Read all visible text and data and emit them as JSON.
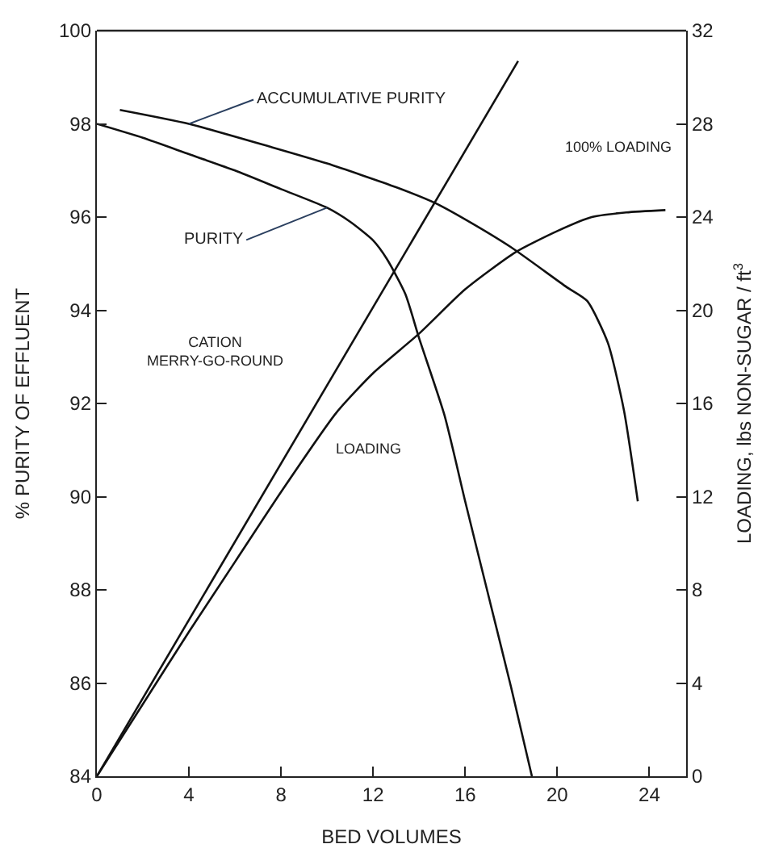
{
  "chart_data": {
    "type": "line",
    "xlabel": "BED VOLUMES",
    "ylabel": "% PURITY OF EFFLUENT",
    "y2label": "LOADING, lbs NON-SUGAR / ft$^{3}$",
    "xlim": [
      0,
      25.6
    ],
    "xticks": [
      0,
      4,
      8,
      12,
      16,
      20,
      24
    ],
    "ylim": [
      84,
      100
    ],
    "yticks": [
      84,
      86,
      88,
      90,
      92,
      94,
      96,
      98,
      100
    ],
    "y2lim": [
      0,
      32
    ],
    "y2ticks": [
      0,
      4,
      8,
      12,
      16,
      20,
      24,
      28,
      32
    ],
    "marker": "none",
    "line_style": "solid",
    "series": [
      {
        "color": "#111111",
        "x": [
          0,
          2,
          4,
          6,
          8,
          10,
          11,
          12,
          12.6,
          13.4,
          14,
          15.1,
          16,
          17,
          18,
          18.9
        ],
        "values": [
          98,
          97.7,
          97.35,
          97.0,
          96.6,
          96.2,
          95.9,
          95.5,
          95.1,
          94.35,
          93.4,
          91.75,
          89.9,
          87.9,
          85.9,
          84
        ]
      },
      {
        "color": "#111111",
        "x": [
          1,
          4,
          7.6,
          10,
          13,
          14.7,
          16,
          18,
          20.4,
          21.3,
          22.2,
          22.9,
          23.5
        ],
        "values": [
          98.3,
          98.0,
          97.5,
          97.15,
          96.64,
          96.3,
          95.95,
          95.35,
          94.5,
          94.2,
          93.3,
          91.85,
          89.9
        ]
      },
      {
        "color": "#111111",
        "axis": "y2",
        "x": [
          0,
          18.3
        ],
        "values": [
          0,
          30.7
        ]
      },
      {
        "color": "#111111",
        "axis": "y2",
        "x": [
          0,
          2,
          4,
          6,
          8,
          10.4,
          12,
          14,
          16,
          18.2,
          20,
          21.5,
          23,
          24.7
        ],
        "values": [
          0,
          3.1,
          6.2,
          9.2,
          12.2,
          15.6,
          17.3,
          19,
          20.9,
          22.5,
          23.4,
          24.0,
          24.2,
          24.3
        ]
      }
    ],
    "annotations": [
      {
        "text": "ACCUMULATIVE PURITY",
        "x": 4,
        "y": 98.0
      },
      {
        "text": "PURITY",
        "x": 10,
        "y": 96.2
      },
      "100% LOADING",
      "LOADING",
      "CATION\nMERRY-GO-ROUND"
    ]
  }
}
